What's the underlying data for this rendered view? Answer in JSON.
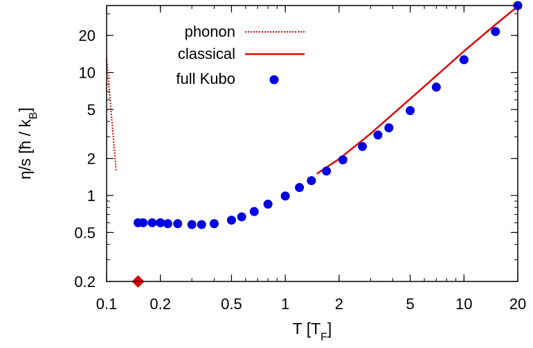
{
  "chart_data": {
    "type": "scatter",
    "xscale": "log",
    "yscale": "log",
    "xlim": [
      0.1,
      20
    ],
    "ylim": [
      0.2,
      35
    ],
    "x_ticks": [
      {
        "value": 0.1,
        "label": "0.1"
      },
      {
        "value": 0.2,
        "label": "0.2"
      },
      {
        "value": 0.5,
        "label": "0.5"
      },
      {
        "value": 1,
        "label": "1"
      },
      {
        "value": 2,
        "label": "2"
      },
      {
        "value": 5,
        "label": "5"
      },
      {
        "value": 10,
        "label": "10"
      },
      {
        "value": 20,
        "label": "20"
      }
    ],
    "y_ticks": [
      {
        "value": 0.2,
        "label": "0.2"
      },
      {
        "value": 0.5,
        "label": "0.5"
      },
      {
        "value": 1,
        "label": "1"
      },
      {
        "value": 2,
        "label": "2"
      },
      {
        "value": 5,
        "label": "5"
      },
      {
        "value": 10,
        "label": "10"
      },
      {
        "value": 20,
        "label": "20"
      }
    ],
    "xlabel": {
      "main": "T [T",
      "sub": "F",
      "end": "]"
    },
    "ylabel": {
      "main": "η/s  [ħ / k",
      "sub": "B",
      "end": "]"
    },
    "grid": false,
    "legend_position": "top-center",
    "series": [
      {
        "name": "phonon",
        "style": "dotted-line",
        "color": "#e00000",
        "x": [
          0.1,
          0.113
        ],
        "y": [
          13.0,
          1.6
        ]
      },
      {
        "name": "classical",
        "style": "line",
        "color": "#e00000",
        "x": [
          1.5,
          2.0,
          3.0,
          5.0,
          7.0,
          10.0,
          15.0,
          20.0
        ],
        "y": [
          1.5,
          1.98,
          3.18,
          6.1,
          9.4,
          14.9,
          24.5,
          34.5
        ]
      },
      {
        "name": "full Kubo",
        "style": "points",
        "color": "#0000e0",
        "x": [
          0.15,
          0.16,
          0.18,
          0.2,
          0.22,
          0.25,
          0.3,
          0.34,
          0.4,
          0.5,
          0.57,
          0.67,
          0.8,
          1.0,
          1.2,
          1.4,
          1.7,
          2.1,
          2.7,
          3.3,
          3.8,
          5.0,
          7.0,
          10.0,
          15.0,
          20.0
        ],
        "y": [
          0.6,
          0.6,
          0.6,
          0.6,
          0.59,
          0.59,
          0.58,
          0.58,
          0.59,
          0.63,
          0.67,
          0.74,
          0.85,
          0.99,
          1.16,
          1.32,
          1.58,
          1.95,
          2.5,
          3.1,
          3.55,
          4.9,
          7.6,
          12.7,
          21.5,
          35.0
        ]
      }
    ],
    "marker": {
      "shape": "diamond",
      "color": "#e00000",
      "x": 0.15,
      "y": 0.2
    }
  }
}
